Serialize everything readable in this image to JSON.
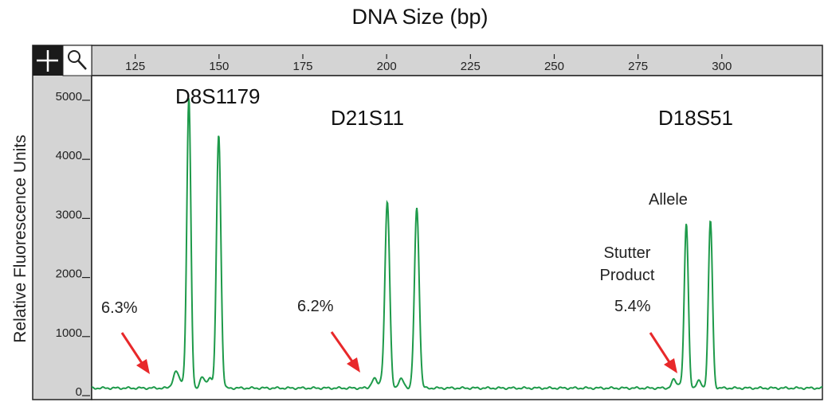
{
  "chart_data": {
    "type": "line",
    "title": "DNA Size (bp)",
    "xlabel": "DNA Size (bp)",
    "ylabel": "Relative Fluorescence Units",
    "xlim": [
      112,
      330
    ],
    "ylim": [
      0,
      5350
    ],
    "x_ticks": [
      125,
      150,
      175,
      200,
      225,
      250,
      275,
      300
    ],
    "y_ticks": [
      0,
      1000,
      2000,
      3000,
      4000,
      5000
    ],
    "y_tick_labels": [
      "0",
      "1000",
      "2000",
      "3000",
      "4000",
      "5000"
    ],
    "grid": false,
    "series": [
      {
        "color": "#1e9a4a",
        "baseline": 60,
        "peaks": [
          {
            "x": 137.2,
            "h": 280,
            "w": 0.9
          },
          {
            "x": 139.5,
            "h": 120,
            "w": 0.6
          },
          {
            "x": 141.0,
            "h": 4900,
            "w": 0.6
          },
          {
            "x": 145.0,
            "h": 180,
            "w": 0.7
          },
          {
            "x": 147.2,
            "h": 180,
            "w": 0.7
          },
          {
            "x": 149.9,
            "h": 4300,
            "w": 0.65
          },
          {
            "x": 196.3,
            "h": 160,
            "w": 0.8
          },
          {
            "x": 198.5,
            "h": 100,
            "w": 0.6
          },
          {
            "x": 200.2,
            "h": 3150,
            "w": 0.7
          },
          {
            "x": 204.4,
            "h": 150,
            "w": 0.8
          },
          {
            "x": 209.0,
            "h": 3050,
            "w": 0.7
          },
          {
            "x": 285.7,
            "h": 140,
            "w": 0.7
          },
          {
            "x": 287.7,
            "h": 80,
            "w": 0.6
          },
          {
            "x": 289.4,
            "h": 2780,
            "w": 0.6
          },
          {
            "x": 293.2,
            "h": 120,
            "w": 0.7
          },
          {
            "x": 296.6,
            "h": 2830,
            "w": 0.6
          }
        ]
      }
    ],
    "annotations": {
      "locus_labels": [
        "D8S1179",
        "D21S11",
        "D18S51"
      ],
      "percent_labels": [
        "6.3%",
        "6.2%",
        "5.4%"
      ],
      "allele_label": "Allele",
      "stutter_label_line1": "Stutter",
      "stutter_label_line2": "Product"
    },
    "colors": {
      "trace": "#1e9a4a",
      "arrow": "#e8282a",
      "axis_panel": "#d4d4d4",
      "toolbar": "#1a1a1a"
    },
    "icons": [
      "crosshair-icon",
      "magnifier-icon"
    ]
  }
}
